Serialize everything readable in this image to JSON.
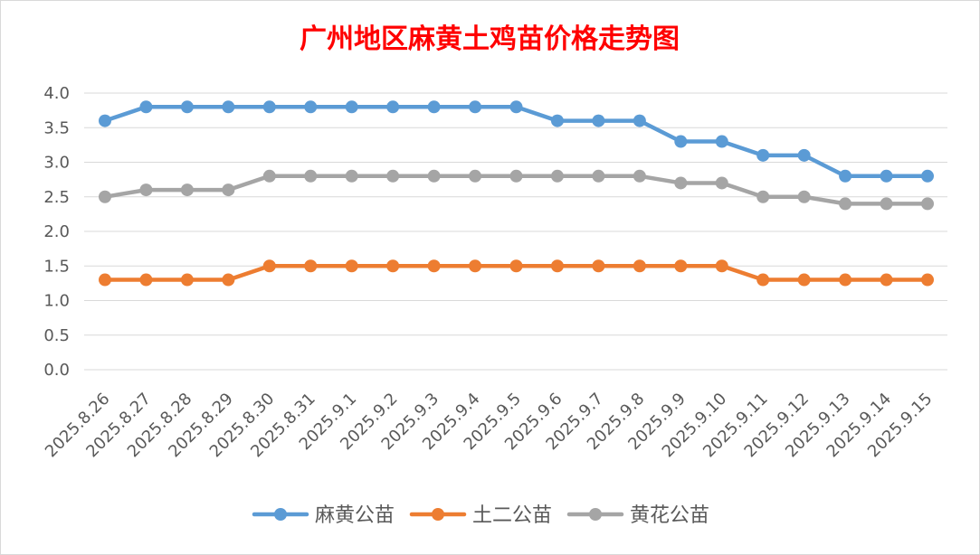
{
  "chart_data": {
    "type": "line",
    "title": "广州地区麻黄土鸡苗价格走势图",
    "categories": [
      "2025.8.26",
      "2025.8.27",
      "2025.8.28",
      "2025.8.29",
      "2025.8.30",
      "2025.8.31",
      "2025.9.1",
      "2025.9.2",
      "2025.9.3",
      "2025.9.4",
      "2025.9.5",
      "2025.9.6",
      "2025.9.7",
      "2025.9.8",
      "2025.9.9",
      "2025.9.10",
      "2025.9.11",
      "2025.9.12",
      "2025.9.13",
      "2025.9.14",
      "2025.9.15"
    ],
    "ylim": [
      0,
      4
    ],
    "yticks": [
      "0.0",
      "0.5",
      "1.0",
      "1.5",
      "2.0",
      "2.5",
      "3.0",
      "3.5",
      "4.0"
    ],
    "grid": true,
    "legend_position": "bottom",
    "series": [
      {
        "name": "麻黄公苗",
        "color": "#5b9bd5",
        "values": [
          3.6,
          3.8,
          3.8,
          3.8,
          3.8,
          3.8,
          3.8,
          3.8,
          3.8,
          3.8,
          3.8,
          3.6,
          3.6,
          3.6,
          3.3,
          3.3,
          3.1,
          3.1,
          2.8,
          2.8,
          2.8
        ]
      },
      {
        "name": "土二公苗",
        "color": "#ed7d31",
        "values": [
          1.3,
          1.3,
          1.3,
          1.3,
          1.5,
          1.5,
          1.5,
          1.5,
          1.5,
          1.5,
          1.5,
          1.5,
          1.5,
          1.5,
          1.5,
          1.5,
          1.3,
          1.3,
          1.3,
          1.3,
          1.3
        ]
      },
      {
        "name": "黄花公苗",
        "color": "#a5a5a5",
        "values": [
          2.5,
          2.6,
          2.6,
          2.6,
          2.8,
          2.8,
          2.8,
          2.8,
          2.8,
          2.8,
          2.8,
          2.8,
          2.8,
          2.8,
          2.7,
          2.7,
          2.5,
          2.5,
          2.4,
          2.4,
          2.4
        ]
      }
    ]
  }
}
